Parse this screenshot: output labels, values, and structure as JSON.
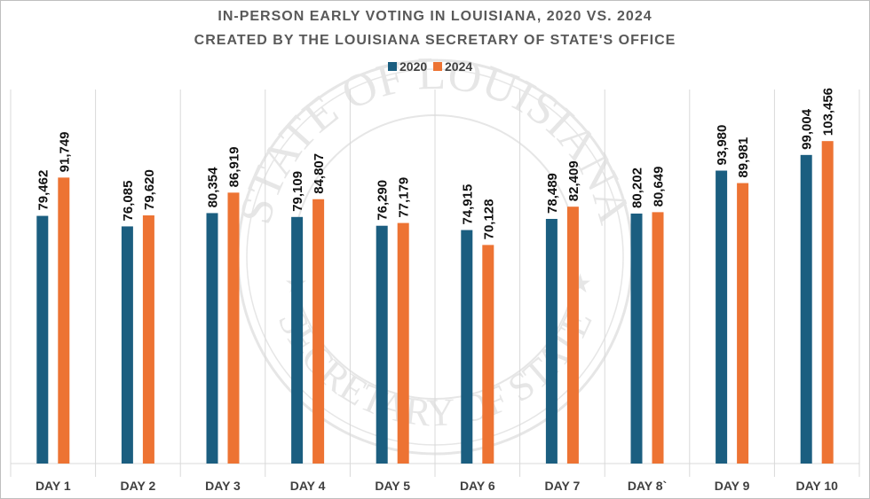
{
  "chart_data": {
    "type": "bar",
    "title": "IN-PERSON EARLY VOTING IN LOUISIANA, 2020 VS. 2024",
    "subtitle": "CREATED BY THE LOUISIANA SECRETARY OF STATE'S OFFICE",
    "categories": [
      "DAY 1",
      "DAY 2",
      "DAY 3",
      "DAY 4",
      "DAY 5",
      "DAY 6",
      "DAY 7",
      "DAY 8`",
      "DAY 9",
      "DAY 10"
    ],
    "series": [
      {
        "name": "2020",
        "color": "#1b5e80",
        "values": [
          79462,
          76085,
          80354,
          79109,
          76290,
          74915,
          78489,
          80202,
          93980,
          99004
        ]
      },
      {
        "name": "2024",
        "color": "#ed7333",
        "values": [
          91749,
          79620,
          86919,
          84807,
          77179,
          70128,
          82409,
          80649,
          89981,
          103456
        ]
      }
    ],
    "ylim": [
      0,
      120000
    ],
    "grid": "vertical category separators",
    "legend": "top-center",
    "data_labels": "rotated vertical, thousands separator",
    "watermark": "STATE OF LOUISIANA SECRETARY OF STATE seal"
  }
}
